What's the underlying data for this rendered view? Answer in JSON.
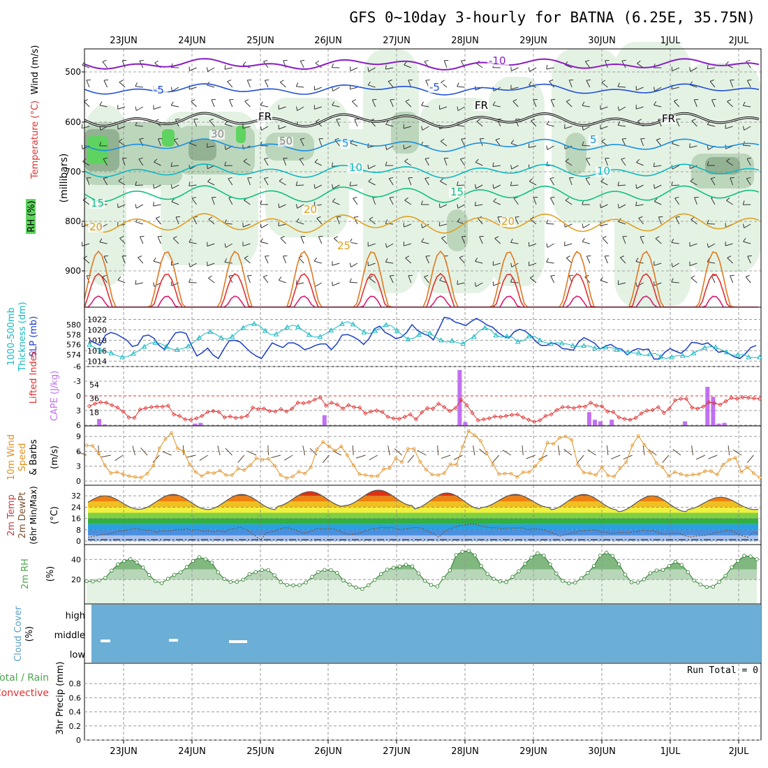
{
  "title": "GFS 0~10day 3-hourly for BATNA (6.25E, 35.75N)",
  "date_labels": [
    "23JUN",
    "24JUN",
    "25JUN",
    "26JUN",
    "27JUN",
    "28JUN",
    "29JUN",
    "30JUN",
    "1JUL",
    "2JUL"
  ],
  "colors": {
    "rh_light": "#e4f2e4",
    "rh_mid": "#bcd6bc",
    "rh_dark": "#93b293",
    "rh_green": "#5fd35f",
    "temp_purple": "#8a1cc4",
    "temp_blue": "#2050d8",
    "temp_lblue": "#1890e0",
    "temp_cyan": "#10b8c0",
    "temp_teal": "#10c080",
    "temp_gold": "#e0a020",
    "temp_orange": "#e07820",
    "temp_red": "#e03030",
    "temp_magenta": "#d81870",
    "slp": "#1a3cc8",
    "thick": "#18b8c0",
    "cape": "#c070f0",
    "li": "#e03030",
    "wind10": "#e09020",
    "cloud": "#6baed6",
    "rh2m": "#4aa84a"
  },
  "chart_data": [
    {
      "type": "contour",
      "panel": "upper-air",
      "y_label_parts": [
        "RH (%)",
        "Temperature (°C)",
        "Wind (m/s)"
      ],
      "y_axis_title": "(millibars)",
      "y_ticks": [
        "500",
        "600",
        "700",
        "800",
        "900"
      ],
      "ylim": [
        1000,
        450
      ],
      "contour_labels": [
        "-10",
        "-5",
        "FR",
        "5",
        "10",
        "15",
        "20",
        "25",
        "30",
        "50"
      ],
      "freezing_label": "FR"
    },
    {
      "type": "line",
      "panel": "slp-thickness",
      "y_label_parts": [
        "1000-500mb",
        "Thickness (dm)",
        "SLP (mb)"
      ],
      "left_ticks": [
        "580",
        "578",
        "576",
        "574"
      ],
      "right_ticks": [
        "1022",
        "1020",
        "1018",
        "1016",
        "1014"
      ],
      "series": [
        {
          "name": "SLP (mb)",
          "values": [
            1018,
            1017.5,
            1017,
            1019,
            1019.5,
            1019.2,
            1018.6,
            1018,
            1016.8,
            1017.1,
            1018.8,
            1019,
            1018.4,
            1017,
            1016.2,
            1017.9,
            1019.4,
            1019.6,
            1019.3,
            1017,
            1015,
            1015.6,
            1016.5,
            1015.2,
            1014.5,
            1016.3,
            1017.9,
            1018,
            1017.7,
            1016.7,
            1015.7,
            1015,
            1014.5,
            1016,
            1017.5,
            1017,
            1016.6,
            1017.5,
            1017.5,
            1017,
            1016.2,
            1016.5,
            1017,
            1017.3,
            1017.3,
            1016.2,
            1017.3,
            1019,
            1019.1,
            1018.7,
            1018.1,
            1017.2,
            1018.3,
            1020.2,
            1020.7,
            1019.5,
            1019,
            1018.3,
            1018.6,
            1019.5,
            1021,
            1019.9,
            1019.3,
            1018.9,
            1018.1,
            1020.2,
            1022.4,
            1022.2,
            1021.5,
            1021.2,
            1020.8,
            1021.6,
            1022.2,
            1021.6,
            1020.9,
            1020.5,
            1019.5,
            1018.8,
            1018.4,
            1019.6,
            1020.1,
            1019.8,
            1019,
            1017.8,
            1017,
            1017,
            1017.5,
            1017.2,
            1016.4,
            1016.3,
            1016.1,
            1017.7,
            1018.5,
            1018,
            1017.4,
            1016.3,
            1016.9,
            1017.2,
            1016.5,
            1016.3,
            1015.2,
            1016,
            1016.4,
            1016.2,
            1016.3,
            1014.4,
            1014.4,
            1015.7,
            1016.4,
            1015.9,
            1015.5,
            1016.3,
            1017.6,
            1017.5,
            1017.2,
            1017.5,
            1016.7,
            1015.7,
            1015.9,
            1015.4,
            1014.8,
            1014.5,
            1015.4,
            1016.6,
            1017
          ]
        },
        {
          "name": "1000-500mb Thickness (dm)",
          "values": [
            576,
            575.4,
            574.9,
            574.6,
            574.3,
            573.8,
            573.5,
            573.6,
            574.2,
            574.8,
            575.6,
            576.3,
            576.4,
            576.2,
            575.6,
            575.1,
            575,
            575.2,
            575.7,
            576.5,
            577.4,
            578.2,
            578.6,
            578.1,
            577.4,
            577.1,
            577.6,
            578.6,
            579.4,
            580,
            580.2,
            579.8,
            578.8,
            578,
            578.1,
            578.8,
            579.5,
            579.9,
            579.6,
            578.8,
            578,
            577.5,
            577.6,
            578.2,
            578.9,
            579.5,
            580.2,
            580.6,
            580.1,
            579.3,
            578.5,
            578.2,
            578.8,
            579.4,
            580,
            579.8,
            578.8,
            577.9,
            577.1,
            577.3,
            578,
            578.7,
            578.3,
            577.5,
            576.9,
            576.5,
            576.8,
            576.4,
            576.2,
            577,
            577.6,
            578.8,
            579.4,
            579,
            577.9,
            577.5,
            577.7,
            577.5,
            576.6,
            576.8,
            577.7,
            577.7,
            576.9,
            576.4,
            576.2,
            576.4,
            576.3,
            576.1,
            575.8,
            575.6,
            575.8,
            575.7,
            575.3,
            575.1,
            575.5,
            575.4,
            575,
            574.7,
            574.5,
            574.3,
            574.3,
            573.8,
            574.1,
            574.2,
            573.6,
            573.2,
            573.5,
            573.8,
            573.8,
            573.6,
            574.3,
            574.9,
            575.4,
            575.6,
            575.5,
            575,
            574.5,
            573.9,
            573.9,
            574,
            573.5,
            573.4,
            573.5
          ]
        }
      ]
    },
    {
      "type": "bar-line",
      "panel": "cape-li",
      "y_label_parts": [
        "Lifted Index",
        "CAPE (J/kg)"
      ],
      "left_ticks": [
        "-6",
        "-3",
        "0",
        "3",
        "6"
      ],
      "right_ticks": [
        "54",
        "36",
        "18"
      ],
      "cape_bars": [
        {
          "i": 1,
          "v": 9
        },
        {
          "i": 2,
          "v": 2
        },
        {
          "i": 18,
          "v": 3
        },
        {
          "i": 19,
          "v": 4
        },
        {
          "i": 65,
          "v": 73
        },
        {
          "i": 66,
          "v": 5
        },
        {
          "i": 41,
          "v": 14
        },
        {
          "i": 88,
          "v": 18
        },
        {
          "i": 89,
          "v": 8
        },
        {
          "i": 90,
          "v": 6
        },
        {
          "i": 92,
          "v": 8
        },
        {
          "i": 105,
          "v": 6
        },
        {
          "i": 109,
          "v": 51
        },
        {
          "i": 110,
          "v": 38
        },
        {
          "i": 111,
          "v": 3
        },
        {
          "i": 112,
          "v": 4
        }
      ],
      "li_values": [
        2.1,
        1.6,
        1.3,
        1.4,
        1.9,
        2.4,
        3.2,
        4.4,
        4.5,
        2.8,
        2.5,
        2.3,
        2.2,
        2.2,
        2,
        3.8,
        4.1,
        4.8,
        4.9,
        4.6,
        4.1,
        3.3,
        3.1,
        3.3,
        4.4,
        4.2,
        4.5,
        4.4,
        4.1,
        2.4,
        2.7,
        2.6,
        3.1,
        3.2,
        2.7,
        3.2,
        2.6,
        1.4,
        1.5,
        1.3,
        0.8,
        0.3,
        2,
        1.4,
        1.8,
        2.6,
        1.9,
        2.3,
        2.4,
        3.6,
        3.2,
        3,
        3.3,
        4.3,
        4.6,
        4.7,
        4.3,
        3.8,
        4.8,
        3.4,
        2.5,
        2.6,
        1.6,
        2.3,
        3.1,
        2.5,
        0.8,
        1.9,
        3.5,
        5,
        4.8,
        4.6,
        4.2,
        4.3,
        4.1,
        3.9,
        3.8,
        4.4,
        4.9,
        5.3,
        5,
        4.1,
        3.8,
        2.9,
        2.3,
        2.3,
        2.5,
        2.2,
        2.2,
        1.4,
        2,
        2.1,
        3.2,
        3.3,
        4.4,
        4.7,
        4.9,
        4.5,
        3.6,
        3,
        2.9,
        2.3,
        3.5,
        2.6,
        0.9,
        0.6,
        0.6,
        2.4,
        2.6,
        2.2,
        1.3,
        1.5,
        1.8,
        1.1,
        0.4,
        0.6,
        0.3,
        0.4,
        0.5,
        0.6
      ]
    },
    {
      "type": "line",
      "panel": "wind-10m",
      "y_label_parts": [
        "10m Wind",
        "Speed",
        "& Barbs"
      ],
      "y_axis_title": "(m/s)",
      "y_ticks": [
        "9",
        "6",
        "3",
        "0"
      ],
      "values": [
        7.2,
        7.1,
        5.6,
        3.2,
        1.6,
        1.8,
        1.4,
        1,
        0.8,
        0.7,
        1.5,
        3.1,
        6.6,
        8.5,
        9.7,
        6.6,
        6,
        3.4,
        1.8,
        1,
        1.7,
        1.6,
        2.1,
        1.2,
        1.2,
        2.5,
        2.2,
        3.2,
        4.6,
        4.3,
        4.5,
        3.1,
        1.2,
        0.6,
        0.9,
        1.9,
        1.5,
        2.8,
        6.4,
        7.9,
        7,
        6.1,
        7,
        5.2,
        3.2,
        1.4,
        1.2,
        1,
        1,
        2.4,
        2.6,
        4.6,
        3.8,
        6.5,
        6.5,
        3.9,
        2.3,
        1.3,
        1.2,
        1.6,
        3.4,
        3.3,
        6.9,
        10.1,
        9.2,
        8.1,
        5.6,
        3.4,
        1.4,
        1.5,
        1.5,
        0.8,
        1.8,
        1.8,
        3,
        4.4,
        7.7,
        7.5,
        8.7,
        9,
        8.3,
        3.3,
        1.7,
        1.6,
        1.2,
        2.8,
        1.1,
        0.9,
        2.6,
        3.8,
        7.2,
        9.1,
        7.3,
        5.8,
        3.6,
        2.8,
        1,
        1.8,
        1.4,
        1.1,
        1.3,
        1.4,
        2,
        2,
        1.3,
        3.3,
        4.3,
        4.7,
        1.8,
        2.8,
        1.6,
        0.7
      ]
    },
    {
      "type": "area",
      "panel": "temp-2m",
      "y_label_parts": [
        "2m Temp",
        "2m DewPt",
        "(6hr Min/Max)"
      ],
      "y_axis_title": "(°C)",
      "y_ticks": [
        "32",
        "24",
        "16",
        "8",
        "0"
      ],
      "temp_peaks": [
        32,
        33,
        33,
        35,
        36,
        34,
        33,
        33,
        32,
        31
      ],
      "temp_mins": [
        22.5,
        22.5,
        22.3,
        24.5,
        25.1,
        22.7,
        23.8,
        22.1,
        20.8,
        22.3
      ],
      "dewpt": [
        2.6,
        3.4,
        4.1,
        4.8,
        5,
        6.1,
        7.3,
        7.4,
        8.2,
        9.1,
        8.2,
        7.7,
        7.8,
        6.2,
        7.2,
        7.1,
        7.3,
        8.1,
        8.2,
        8.6,
        7.6,
        8.2,
        6.9,
        7.3,
        6.4,
        7.4,
        6.4,
        8.2,
        8.8,
        10,
        8.6,
        6.3,
        3.6,
        0.8,
        5.7,
        6.6,
        7.5,
        9,
        9.6,
        8.5,
        7.3,
        5.5,
        6.2,
        7.7,
        9.2,
        8.4,
        9,
        8.4,
        7.3,
        5.5,
        4.5,
        5,
        5.7,
        7.3,
        8.4,
        8.9,
        9.7,
        9.3,
        9.7,
        8.5,
        8.3,
        8.7,
        9.5,
        9.6,
        8.7,
        6.7,
        5.3,
        2.7,
        6.5,
        8.5,
        9.9,
        10.9,
        11.5,
        12.1,
        12,
        10.7,
        9.9,
        9.5,
        9.5,
        8.7,
        9.3,
        9.2,
        9.4,
        9.3,
        8.1,
        8.7,
        8.4,
        8.1,
        6.7,
        5.4,
        3.4,
        4.3,
        5.5,
        6,
        7.4,
        7.4,
        7.7,
        7.8,
        6.4,
        6.3,
        5.2,
        5.8,
        6.1,
        5.8,
        6.6,
        6.7,
        7.8,
        7.1,
        7.4,
        5.8,
        4.8,
        5.4,
        5.7,
        5.5,
        3.8,
        2.9,
        3.5,
        3.8,
        4.1,
        5.2,
        6.1,
        6.7,
        7.6,
        7.3,
        5.4,
        3.7,
        2.8,
        6.4,
        5.2
      ]
    },
    {
      "type": "area",
      "panel": "rh-2m",
      "y_label_parts": [
        "2m RH"
      ],
      "y_axis_title": "(%)",
      "y_ticks": [
        "40",
        "20"
      ],
      "values": [
        18.5,
        18.2,
        19.3,
        21.8,
        29,
        35.2,
        38.4,
        40.4,
        37,
        32,
        24.6,
        18.4,
        16.5,
        20.8,
        24.8,
        27.2,
        32.5,
        38.5,
        42.3,
        40.2,
        36.8,
        27.2,
        20.6,
        17.6,
        17.8,
        20,
        25.4,
        27.4,
        29.7,
        29.5,
        24.3,
        17.5,
        14.8,
        14.3,
        14.5,
        17.2,
        22.8,
        27.5,
        29.7,
        29.5,
        26.7,
        19.2,
        15.1,
        12.3,
        10.8,
        14.4,
        19.7,
        25.5,
        29.9,
        31.8,
        33.1,
        34.8,
        33.2,
        26.2,
        18.8,
        14.7,
        13.2,
        21.6,
        29.2,
        44.4,
        47.7,
        48.5,
        44.1,
        33.6,
        25.6,
        20.8,
        18.2,
        17.5,
        22.8,
        28.3,
        35.8,
        41.9,
        46.1,
        43.8,
        35.2,
        26,
        18.8,
        16.3,
        17,
        21.4,
        26.6,
        33.6,
        43.9,
        46.8,
        43.6,
        35.2,
        25,
        17.4,
        17.2,
        20.2,
        26.4,
        29.1,
        29.6,
        33.5,
        37.7,
        34.5,
        27.4,
        19.1,
        15.2,
        12.7,
        13,
        17.8,
        23.9,
        32.2,
        38.6,
        43.7,
        43,
        40.2
      ]
    },
    {
      "type": "band",
      "panel": "cloud-cover",
      "y_label_parts": [
        "Cloud Cover",
        "(%)"
      ],
      "levels": [
        "high",
        "middle",
        "low"
      ]
    },
    {
      "type": "bar",
      "panel": "precip",
      "y_label_parts": [
        "Total / Rain",
        "Convective"
      ],
      "y_axis_title": "3hr Precip (mm)",
      "y_ticks": [
        "0.8",
        "0.6",
        "0.4",
        "0.2",
        "0"
      ],
      "ylim": [
        0,
        1
      ],
      "run_total_label": "Run Total = 0"
    }
  ]
}
